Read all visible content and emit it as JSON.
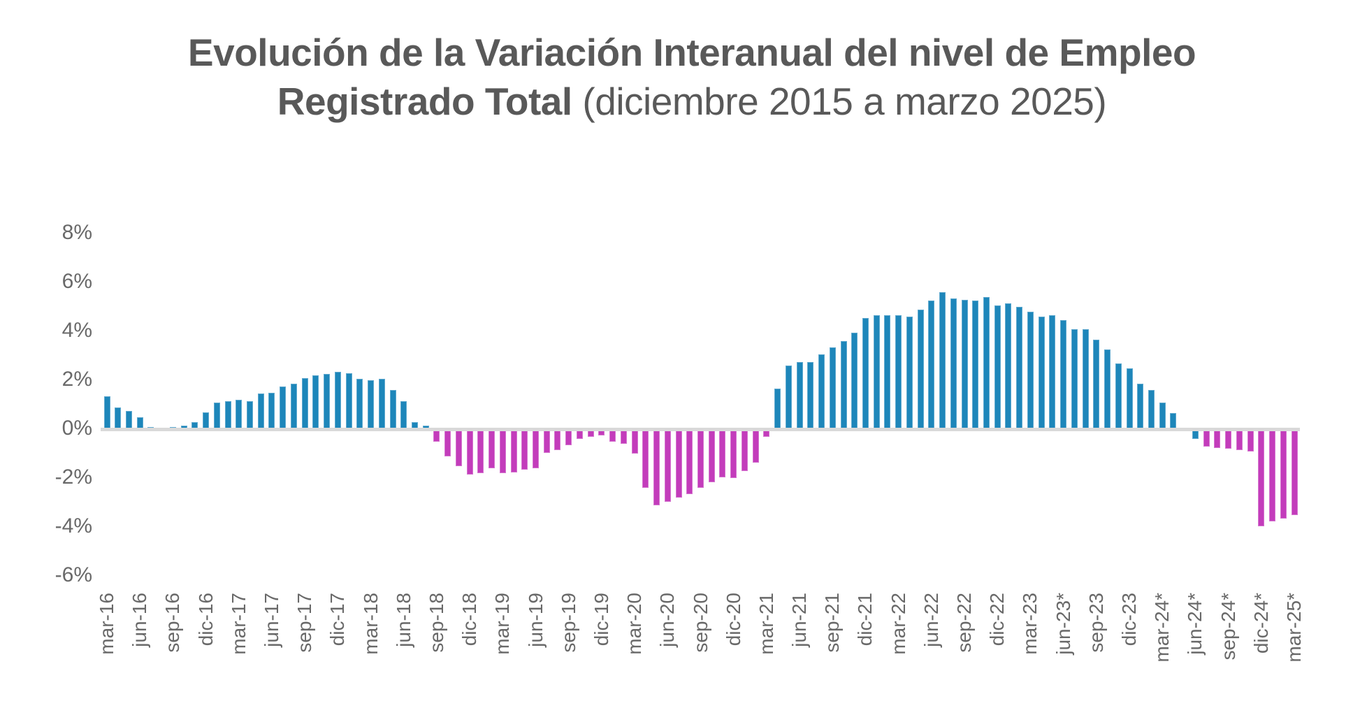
{
  "title": {
    "bold": "Evolución de la Variación Interanual del nivel de Empleo Registrado Total",
    "regular": " (diciembre 2015 a marzo 2025)"
  },
  "chart_data": {
    "type": "bar",
    "title": "Evolución de la Variación Interanual del nivel de Empleo Registrado Total (diciembre 2015 a marzo 2025)",
    "unit": "%",
    "ylim": [
      -6,
      8
    ],
    "grid": false,
    "legend": false,
    "y_axis": {
      "tick_labels": [
        "8%",
        "6%",
        "4%",
        "2%",
        "0%",
        "-2%",
        "-4%",
        "-6%"
      ],
      "tick_values": [
        8,
        6,
        4,
        2,
        0,
        -2,
        -4,
        -6
      ]
    },
    "x_axis": {
      "tick_every_n_bars": 3,
      "tick_labels": [
        "mar-16",
        "jun-16",
        "sep-16",
        "dic-16",
        "mar-17",
        "jun-17",
        "sep-17",
        "dic-17",
        "mar-18",
        "jun-18",
        "sep-18",
        "dic-18",
        "mar-19",
        "jun-19",
        "sep-19",
        "dic-19",
        "mar-20",
        "jun-20",
        "sep-20",
        "dic-20",
        "mar-21",
        "jun-21",
        "sep-21",
        "dic-21",
        "mar-22",
        "jun-22",
        "sep-22",
        "dic-22",
        "mar-23",
        "jun-23*",
        "sep-23",
        "dic-23",
        "mar-24*",
        "jun-24*",
        "sep-24*",
        "dic-24*",
        "mar-25*"
      ]
    },
    "values": [
      1.4,
      0.95,
      0.8,
      0.55,
      0.15,
      0,
      0.15,
      0.2,
      0.35,
      0.75,
      1.15,
      1.2,
      1.25,
      1.2,
      1.5,
      1.55,
      1.8,
      1.9,
      2.15,
      2.25,
      2.3,
      2.4,
      2.35,
      2.1,
      2.05,
      2.1,
      1.65,
      1.2,
      0.35,
      0.2,
      -0.45,
      -1.05,
      -1.45,
      -1.8,
      -1.75,
      -1.55,
      -1.75,
      -1.7,
      -1.6,
      -1.55,
      -0.9,
      -0.8,
      -0.6,
      -0.35,
      -0.25,
      -0.2,
      -0.45,
      -0.55,
      -0.95,
      -2.35,
      -3.05,
      -2.9,
      -2.75,
      -2.6,
      -2.35,
      -2.1,
      -1.9,
      -1.95,
      -1.65,
      -1.3,
      -0.25,
      1.7,
      2.65,
      2.8,
      2.8,
      3.1,
      3.4,
      3.65,
      4.0,
      4.6,
      4.7,
      4.7,
      4.7,
      4.65,
      4.95,
      5.3,
      5.65,
      5.4,
      5.35,
      5.3,
      5.45,
      5.1,
      5.2,
      5.05,
      4.85,
      4.65,
      4.7,
      4.5,
      4.15,
      4.15,
      3.7,
      3.3,
      2.75,
      2.55,
      1.9,
      1.65,
      1.15,
      0.7,
      0.1,
      -0.35,
      -0.65,
      -0.7,
      -0.75,
      -0.8,
      -0.85,
      -3.9,
      -3.7,
      -3.6,
      -3.45
    ],
    "colors": {
      "positive_bar": "#1d86ba",
      "negative_bar": "#c33cbb",
      "axis_line": "#d9d9d9",
      "title_text": "#595959",
      "tick_text": "#696969"
    },
    "color_exceptions": [
      {
        "index": 99,
        "use": "positive_bar"
      }
    ]
  }
}
